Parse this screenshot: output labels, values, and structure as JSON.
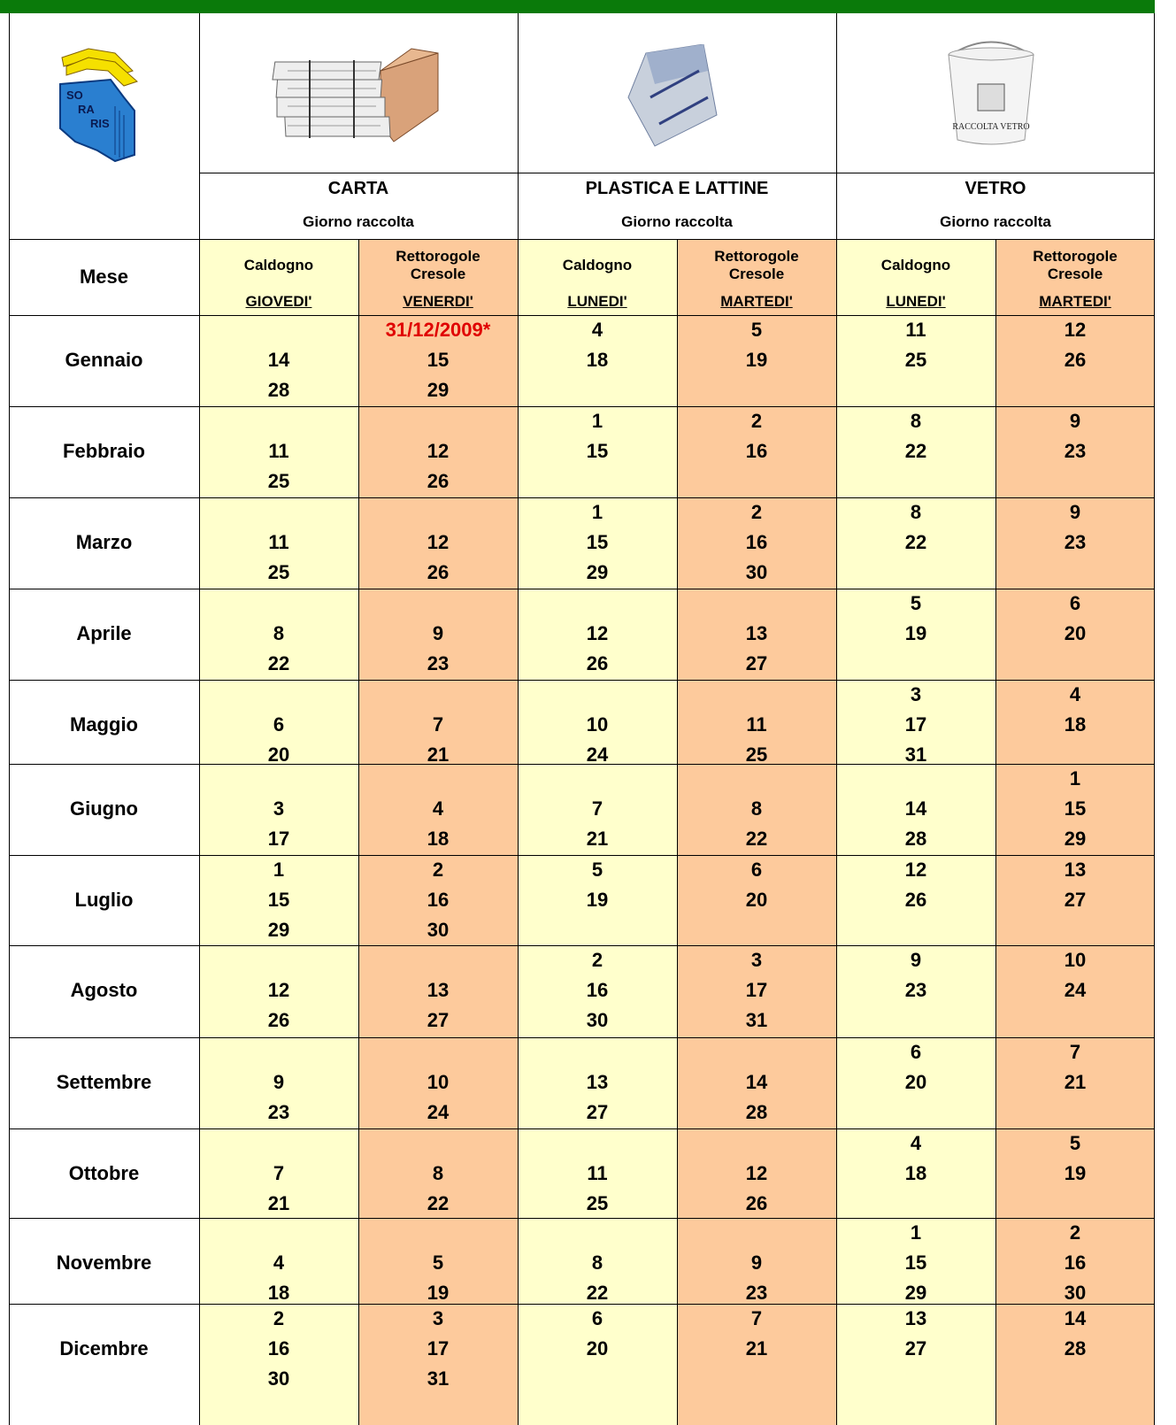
{
  "logo": {
    "text": [
      "SO",
      "RA",
      "RIS"
    ]
  },
  "bucket_label": "RACCOLTA VETRO",
  "month_header": "Mese",
  "groups": [
    {
      "title": "CARTA",
      "subtitle": "Giorno raccolta",
      "columns": [
        {
          "place": "Caldogno",
          "day": "GIOVEDI'"
        },
        {
          "place": "Rettorogole Cresole",
          "day": "VENERDI'"
        }
      ]
    },
    {
      "title": "PLASTICA E LATTINE",
      "subtitle": "Giorno raccolta",
      "columns": [
        {
          "place": "Caldogno",
          "day": "LUNEDI'"
        },
        {
          "place": "Rettorogole Cresole",
          "day": "MARTEDI'"
        }
      ]
    },
    {
      "title": "VETRO",
      "subtitle": "Giorno raccolta",
      "columns": [
        {
          "place": "Caldogno",
          "day": "LUNEDI'"
        },
        {
          "place": "Rettorogole Cresole",
          "day": "MARTEDI'"
        }
      ]
    }
  ],
  "rows": [
    {
      "month": "Gennaio",
      "cells": [
        [
          null,
          14,
          28
        ],
        [
          "31/12/2009*",
          15,
          29
        ],
        [
          4,
          18,
          null
        ],
        [
          5,
          19,
          null
        ],
        [
          11,
          25,
          null
        ],
        [
          12,
          26,
          null
        ]
      ]
    },
    {
      "month": "Febbraio",
      "cells": [
        [
          null,
          11,
          25
        ],
        [
          null,
          12,
          26
        ],
        [
          1,
          15,
          null
        ],
        [
          2,
          16,
          null
        ],
        [
          8,
          22,
          null
        ],
        [
          9,
          23,
          null
        ]
      ]
    },
    {
      "month": "Marzo",
      "cells": [
        [
          null,
          11,
          25
        ],
        [
          null,
          12,
          26
        ],
        [
          1,
          15,
          29
        ],
        [
          2,
          16,
          30
        ],
        [
          8,
          22,
          null
        ],
        [
          9,
          23,
          null
        ]
      ]
    },
    {
      "month": "Aprile",
      "cells": [
        [
          null,
          8,
          22
        ],
        [
          null,
          9,
          23
        ],
        [
          null,
          12,
          26
        ],
        [
          null,
          13,
          27
        ],
        [
          5,
          19,
          null
        ],
        [
          6,
          20,
          null
        ]
      ]
    },
    {
      "month": "Maggio",
      "cells": [
        [
          null,
          6,
          20
        ],
        [
          null,
          7,
          21
        ],
        [
          null,
          10,
          24
        ],
        [
          null,
          11,
          25
        ],
        [
          3,
          17,
          31
        ],
        [
          4,
          18,
          null
        ]
      ]
    },
    {
      "month": "Giugno",
      "cells": [
        [
          null,
          3,
          17
        ],
        [
          null,
          4,
          18
        ],
        [
          null,
          7,
          21
        ],
        [
          null,
          8,
          22
        ],
        [
          null,
          14,
          28
        ],
        [
          1,
          15,
          29
        ]
      ]
    },
    {
      "month": "Luglio",
      "cells": [
        [
          1,
          15,
          29
        ],
        [
          2,
          16,
          30
        ],
        [
          5,
          19,
          null
        ],
        [
          6,
          20,
          null
        ],
        [
          12,
          26,
          null
        ],
        [
          13,
          27,
          null
        ]
      ]
    },
    {
      "month": "Agosto",
      "cells": [
        [
          null,
          12,
          26
        ],
        [
          null,
          13,
          27
        ],
        [
          2,
          16,
          30
        ],
        [
          3,
          17,
          31
        ],
        [
          9,
          23,
          null
        ],
        [
          10,
          24,
          null
        ]
      ]
    },
    {
      "month": "Settembre",
      "cells": [
        [
          null,
          9,
          23
        ],
        [
          null,
          10,
          24
        ],
        [
          null,
          13,
          27
        ],
        [
          null,
          14,
          28
        ],
        [
          6,
          20,
          null
        ],
        [
          7,
          21,
          null
        ]
      ]
    },
    {
      "month": "Ottobre",
      "cells": [
        [
          null,
          7,
          21
        ],
        [
          null,
          8,
          22
        ],
        [
          null,
          11,
          25
        ],
        [
          null,
          12,
          26
        ],
        [
          4,
          18,
          null
        ],
        [
          5,
          19,
          null
        ]
      ]
    },
    {
      "month": "Novembre",
      "cells": [
        [
          null,
          4,
          18
        ],
        [
          null,
          5,
          19
        ],
        [
          null,
          8,
          22
        ],
        [
          null,
          9,
          23
        ],
        [
          1,
          15,
          29
        ],
        [
          2,
          16,
          30
        ]
      ]
    },
    {
      "month": "Dicembre",
      "cells": [
        [
          2,
          16,
          30
        ],
        [
          3,
          17,
          31
        ],
        [
          6,
          20,
          null
        ],
        [
          7,
          21,
          null
        ],
        [
          13,
          27,
          null
        ],
        [
          14,
          28,
          null
        ]
      ]
    }
  ]
}
